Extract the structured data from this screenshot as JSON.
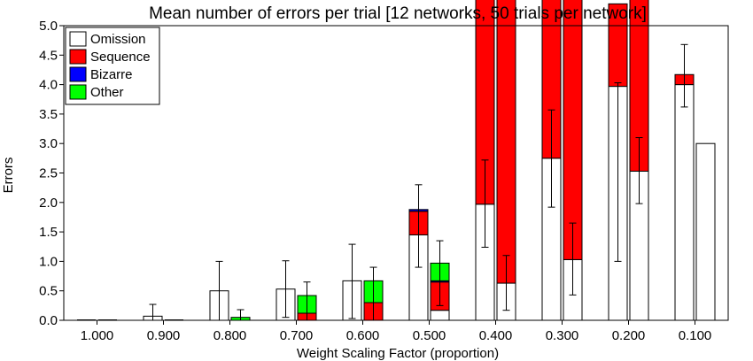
{
  "chart_data": {
    "type": "bar",
    "title": "Mean number of errors per trial [12 networks, 50 trials per network]",
    "xlabel": "Weight Scaling Factor (proportion)",
    "ylabel": "Errors",
    "ylim": [
      0,
      5
    ],
    "yticks": [
      "0.0",
      "0.5",
      "1.0",
      "1.5",
      "2.0",
      "2.5",
      "3.0",
      "3.5",
      "4.0",
      "4.5",
      "5.0"
    ],
    "categories": [
      "1.000",
      "0.900",
      "0.800",
      "0.700",
      "0.600",
      "0.500",
      "0.400",
      "0.300",
      "0.200",
      "0.100"
    ],
    "stacked": true,
    "bars_per_category": 2,
    "legend_position": "top-left",
    "series": [
      {
        "name": "Omission",
        "color": "#ffffff",
        "left": [
          0.0,
          0.07,
          0.5,
          0.53,
          0.67,
          1.45,
          1.97,
          2.75,
          3.97,
          4.0
        ],
        "right": [
          0.0,
          0.0,
          0.0,
          0.0,
          0.0,
          0.17,
          0.63,
          1.03,
          2.53,
          3.0
        ]
      },
      {
        "name": "Sequence",
        "color": "#ff0000",
        "left": [
          0.0,
          0.0,
          0.0,
          0.0,
          0.0,
          0.4,
          5.5,
          5.0,
          1.4,
          0.17
        ],
        "right": [
          0.0,
          0.0,
          0.0,
          0.12,
          0.3,
          0.48,
          6.0,
          5.5,
          3.2,
          0.0
        ]
      },
      {
        "name": "Bizarre",
        "color": "#0000ff",
        "left": [
          0.0,
          0.0,
          0.0,
          0.0,
          0.0,
          0.03,
          0.0,
          0.0,
          0.0,
          0.0
        ],
        "right": [
          0.0,
          0.0,
          0.0,
          0.0,
          0.0,
          0.02,
          0.0,
          0.0,
          0.0,
          0.0
        ]
      },
      {
        "name": "Other",
        "color": "#00ff00",
        "left": [
          0.0,
          0.0,
          0.0,
          0.0,
          0.0,
          0.0,
          0.0,
          0.0,
          0.0,
          0.0
        ],
        "right": [
          0.0,
          0.0,
          0.05,
          0.3,
          0.37,
          0.3,
          0.0,
          0.0,
          0.0,
          0.0
        ]
      }
    ],
    "error_bars": {
      "left": [
        [
          0,
          0
        ],
        [
          0,
          0.27
        ],
        [
          0.0,
          1.0
        ],
        [
          0.05,
          1.01
        ],
        [
          0.03,
          1.29
        ],
        [
          0.9,
          2.3
        ],
        [
          1.24,
          2.72
        ],
        [
          1.92,
          3.57
        ],
        [
          1.0,
          4.03
        ],
        [
          3.62,
          4.68
        ]
      ],
      "right": [
        [
          0,
          0
        ],
        [
          0,
          0
        ],
        [
          0,
          0.18
        ],
        [
          0.0,
          0.65
        ],
        [
          0.0,
          0.9
        ],
        [
          0.25,
          1.35
        ],
        [
          0.17,
          1.1
        ],
        [
          0.43,
          1.65
        ],
        [
          1.98,
          3.1
        ],
        [
          3.0,
          3.0
        ]
      ]
    }
  }
}
